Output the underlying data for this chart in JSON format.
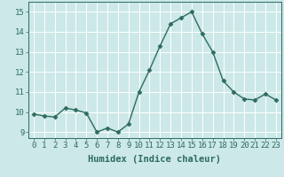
{
  "x": [
    0,
    1,
    2,
    3,
    4,
    5,
    6,
    7,
    8,
    9,
    10,
    11,
    12,
    13,
    14,
    15,
    16,
    17,
    18,
    19,
    20,
    21,
    22,
    23
  ],
  "y": [
    9.9,
    9.8,
    9.75,
    10.2,
    10.1,
    9.95,
    9.0,
    9.2,
    9.0,
    9.4,
    11.0,
    12.1,
    13.3,
    14.4,
    14.7,
    15.0,
    13.9,
    13.0,
    11.55,
    11.0,
    10.65,
    10.6,
    10.9,
    10.6
  ],
  "line_color": "#2d6b5e",
  "marker": "D",
  "marker_size": 2.5,
  "line_width": 1.0,
  "bg_color": "#cce8e8",
  "grid_color": "#ffffff",
  "xlabel": "Humidex (Indice chaleur)",
  "ylabel": "",
  "xlim": [
    -0.5,
    23.5
  ],
  "ylim": [
    8.7,
    15.5
  ],
  "yticks": [
    9,
    10,
    11,
    12,
    13,
    14,
    15
  ],
  "xticks": [
    0,
    1,
    2,
    3,
    4,
    5,
    6,
    7,
    8,
    9,
    10,
    11,
    12,
    13,
    14,
    15,
    16,
    17,
    18,
    19,
    20,
    21,
    22,
    23
  ],
  "tick_fontsize": 6.5,
  "xlabel_fontsize": 7.5
}
